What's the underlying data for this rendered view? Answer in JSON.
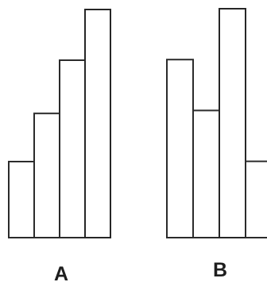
{
  "groups": [
    {
      "label": "A",
      "bar_count": 4
    },
    {
      "label": "B",
      "bar_count": 4
    }
  ],
  "chart_data": {
    "type": "bar",
    "groups": [
      {
        "name": "A",
        "values": [
          3.0,
          4.9,
          7.0,
          9.0
        ]
      },
      {
        "name": "B",
        "values": [
          7.0,
          5.0,
          9.0,
          3.0
        ]
      }
    ],
    "ylim": [
      0,
      9.0
    ],
    "grid": false,
    "colors": {
      "outline": "#2b2b2b",
      "fill": "#ffffff"
    }
  }
}
